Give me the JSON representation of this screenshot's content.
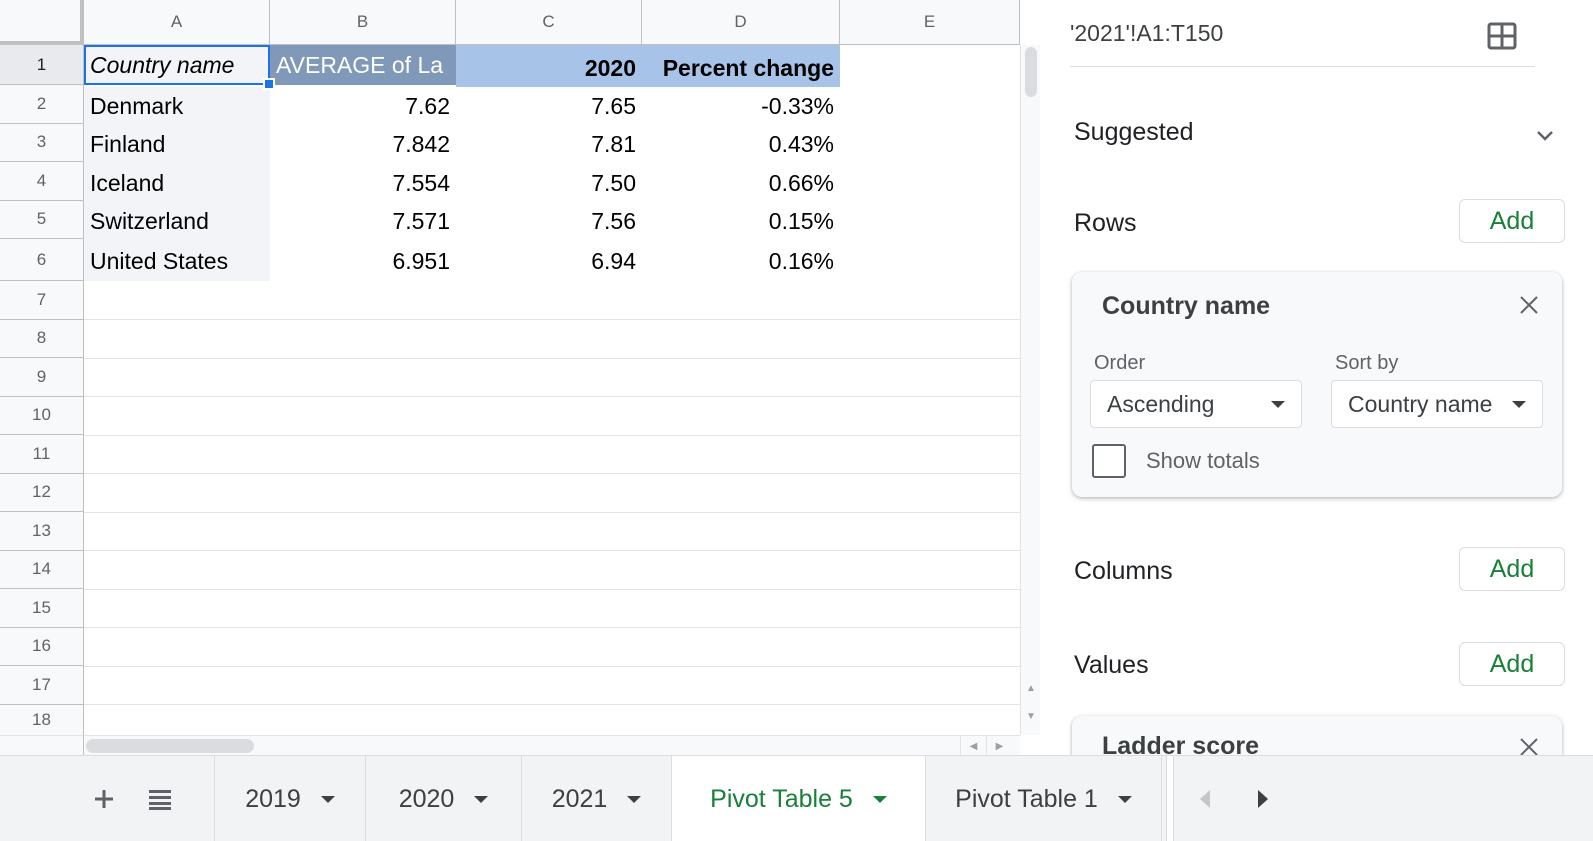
{
  "columns": [
    "A",
    "B",
    "C",
    "D",
    "E"
  ],
  "rows": [
    "1",
    "2",
    "3",
    "4",
    "5",
    "6",
    "7",
    "8",
    "9",
    "10",
    "11",
    "12",
    "13",
    "14",
    "15",
    "16",
    "17",
    "18"
  ],
  "pivot": {
    "header": {
      "a": "Country name",
      "b": "AVERAGE of La",
      "c": "2020",
      "d": "Percent change"
    },
    "data": [
      {
        "country": "Denmark",
        "avg": "7.62",
        "y2020": "7.65",
        "pct": "-0.33%"
      },
      {
        "country": "Finland",
        "avg": "7.842",
        "y2020": "7.81",
        "pct": "0.43%"
      },
      {
        "country": "Iceland",
        "avg": "7.554",
        "y2020": "7.50",
        "pct": "0.66%"
      },
      {
        "country": "Switzerland",
        "avg": "7.571",
        "y2020": "7.56",
        "pct": "0.15%"
      },
      {
        "country": "United States",
        "avg": "6.951",
        "y2020": "6.94",
        "pct": "0.16%"
      }
    ]
  },
  "panel": {
    "range": "'2021'!A1:T150",
    "suggested": "Suggested",
    "rows_title": "Rows",
    "columns_title": "Columns",
    "values_title": "Values",
    "add_label": "Add",
    "row_field": {
      "title": "Country name",
      "order_label": "Order",
      "order_value": "Ascending",
      "sortby_label": "Sort by",
      "sortby_value": "Country name",
      "show_totals_label": "Show totals",
      "show_totals_checked": false
    },
    "value_field": {
      "title": "Ladder score"
    }
  },
  "tabs": {
    "items": [
      "2019",
      "2020",
      "2021",
      "Pivot Table 5",
      "Pivot Table 1"
    ],
    "active": "Pivot Table 5"
  },
  "colors": {
    "accent_green": "#188038",
    "selection_blue": "#1a73e8",
    "pivot_header_dark": "#8099b8",
    "pivot_header_light": "#a7c4e8"
  }
}
